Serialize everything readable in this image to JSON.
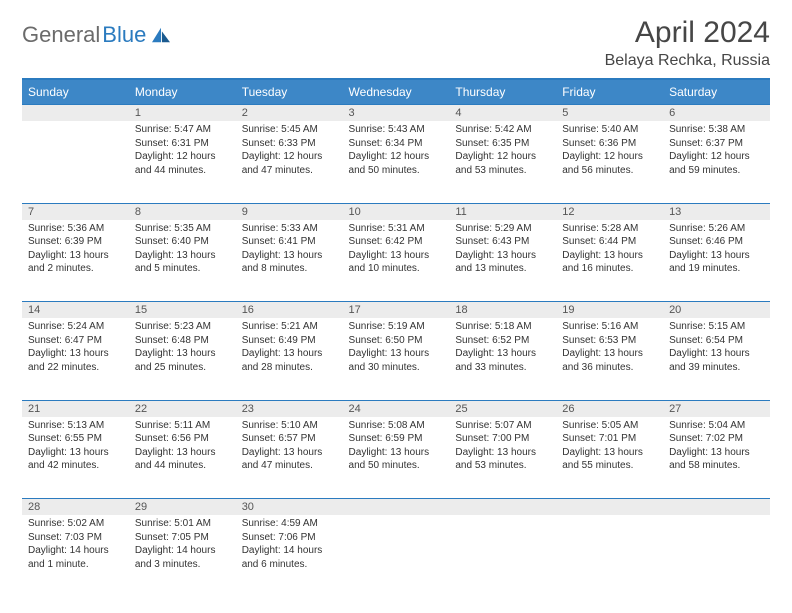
{
  "logo": {
    "general": "General",
    "blue": "Blue"
  },
  "title": "April 2024",
  "location": "Belaya Rechka, Russia",
  "colors": {
    "header_bg": "#3d87c7",
    "accent": "#2b7bbf",
    "daynum_bg": "#ececec",
    "text": "#333333",
    "title_text": "#464646"
  },
  "day_headers": [
    "Sunday",
    "Monday",
    "Tuesday",
    "Wednesday",
    "Thursday",
    "Friday",
    "Saturday"
  ],
  "first_weekday": 1,
  "days": [
    {
      "n": 1,
      "sr": "5:47 AM",
      "ss": "6:31 PM",
      "dl": "12 hours and 44 minutes."
    },
    {
      "n": 2,
      "sr": "5:45 AM",
      "ss": "6:33 PM",
      "dl": "12 hours and 47 minutes."
    },
    {
      "n": 3,
      "sr": "5:43 AM",
      "ss": "6:34 PM",
      "dl": "12 hours and 50 minutes."
    },
    {
      "n": 4,
      "sr": "5:42 AM",
      "ss": "6:35 PM",
      "dl": "12 hours and 53 minutes."
    },
    {
      "n": 5,
      "sr": "5:40 AM",
      "ss": "6:36 PM",
      "dl": "12 hours and 56 minutes."
    },
    {
      "n": 6,
      "sr": "5:38 AM",
      "ss": "6:37 PM",
      "dl": "12 hours and 59 minutes."
    },
    {
      "n": 7,
      "sr": "5:36 AM",
      "ss": "6:39 PM",
      "dl": "13 hours and 2 minutes."
    },
    {
      "n": 8,
      "sr": "5:35 AM",
      "ss": "6:40 PM",
      "dl": "13 hours and 5 minutes."
    },
    {
      "n": 9,
      "sr": "5:33 AM",
      "ss": "6:41 PM",
      "dl": "13 hours and 8 minutes."
    },
    {
      "n": 10,
      "sr": "5:31 AM",
      "ss": "6:42 PM",
      "dl": "13 hours and 10 minutes."
    },
    {
      "n": 11,
      "sr": "5:29 AM",
      "ss": "6:43 PM",
      "dl": "13 hours and 13 minutes."
    },
    {
      "n": 12,
      "sr": "5:28 AM",
      "ss": "6:44 PM",
      "dl": "13 hours and 16 minutes."
    },
    {
      "n": 13,
      "sr": "5:26 AM",
      "ss": "6:46 PM",
      "dl": "13 hours and 19 minutes."
    },
    {
      "n": 14,
      "sr": "5:24 AM",
      "ss": "6:47 PM",
      "dl": "13 hours and 22 minutes."
    },
    {
      "n": 15,
      "sr": "5:23 AM",
      "ss": "6:48 PM",
      "dl": "13 hours and 25 minutes."
    },
    {
      "n": 16,
      "sr": "5:21 AM",
      "ss": "6:49 PM",
      "dl": "13 hours and 28 minutes."
    },
    {
      "n": 17,
      "sr": "5:19 AM",
      "ss": "6:50 PM",
      "dl": "13 hours and 30 minutes."
    },
    {
      "n": 18,
      "sr": "5:18 AM",
      "ss": "6:52 PM",
      "dl": "13 hours and 33 minutes."
    },
    {
      "n": 19,
      "sr": "5:16 AM",
      "ss": "6:53 PM",
      "dl": "13 hours and 36 minutes."
    },
    {
      "n": 20,
      "sr": "5:15 AM",
      "ss": "6:54 PM",
      "dl": "13 hours and 39 minutes."
    },
    {
      "n": 21,
      "sr": "5:13 AM",
      "ss": "6:55 PM",
      "dl": "13 hours and 42 minutes."
    },
    {
      "n": 22,
      "sr": "5:11 AM",
      "ss": "6:56 PM",
      "dl": "13 hours and 44 minutes."
    },
    {
      "n": 23,
      "sr": "5:10 AM",
      "ss": "6:57 PM",
      "dl": "13 hours and 47 minutes."
    },
    {
      "n": 24,
      "sr": "5:08 AM",
      "ss": "6:59 PM",
      "dl": "13 hours and 50 minutes."
    },
    {
      "n": 25,
      "sr": "5:07 AM",
      "ss": "7:00 PM",
      "dl": "13 hours and 53 minutes."
    },
    {
      "n": 26,
      "sr": "5:05 AM",
      "ss": "7:01 PM",
      "dl": "13 hours and 55 minutes."
    },
    {
      "n": 27,
      "sr": "5:04 AM",
      "ss": "7:02 PM",
      "dl": "13 hours and 58 minutes."
    },
    {
      "n": 28,
      "sr": "5:02 AM",
      "ss": "7:03 PM",
      "dl": "14 hours and 1 minute."
    },
    {
      "n": 29,
      "sr": "5:01 AM",
      "ss": "7:05 PM",
      "dl": "14 hours and 3 minutes."
    },
    {
      "n": 30,
      "sr": "4:59 AM",
      "ss": "7:06 PM",
      "dl": "14 hours and 6 minutes."
    }
  ],
  "labels": {
    "sunrise": "Sunrise:",
    "sunset": "Sunset:",
    "daylight": "Daylight:"
  }
}
